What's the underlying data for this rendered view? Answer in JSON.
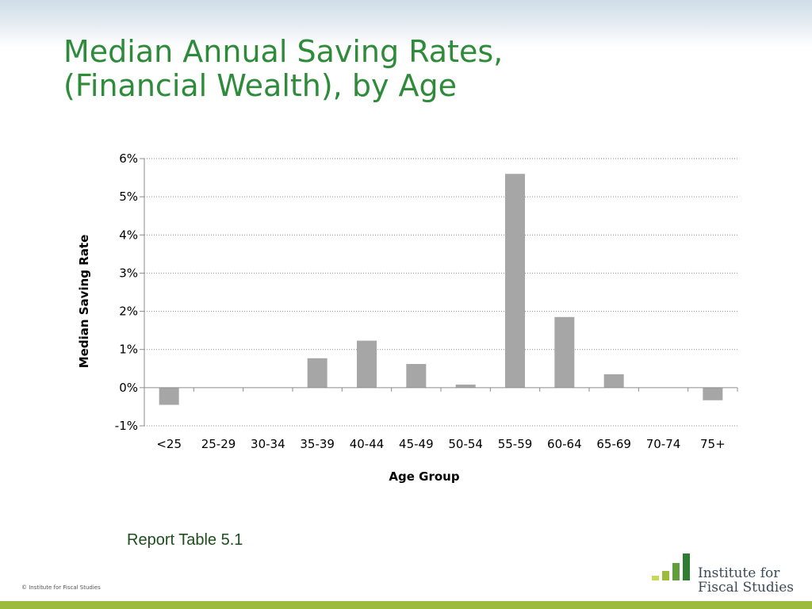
{
  "slide": {
    "title_line1": "Median Annual Saving Rates,",
    "title_line2": "(Financial Wealth), by Age",
    "caption": "Report Table 5.1",
    "copyright": "© Institute for Fiscal Studies",
    "logo_line1": "Institute for",
    "logo_line2": "Fiscal Studies",
    "colors": {
      "title": "#2e8b3a",
      "bar": "#a6a6a6",
      "logo_bars": [
        "#c8d85a",
        "#9dbb3d",
        "#5f9e3a",
        "#2e7d32"
      ],
      "bottom_band": "#9dbb3d"
    }
  },
  "chart_data": {
    "type": "bar",
    "categories": [
      "<25",
      "25-29",
      "30-34",
      "35-39",
      "40-44",
      "45-49",
      "50-54",
      "55-59",
      "60-64",
      "65-69",
      "70-74",
      "75+"
    ],
    "values": [
      -0.45,
      0.0,
      0.0,
      0.77,
      1.23,
      0.62,
      0.08,
      5.6,
      1.85,
      0.35,
      0.0,
      -0.33
    ],
    "xlabel": "Age Group",
    "ylabel": "Median Saving Rate",
    "ylim": [
      -1,
      6
    ],
    "yticks": [
      "-1%",
      "0%",
      "1%",
      "2%",
      "3%",
      "4%",
      "5%",
      "6%"
    ],
    "grid": true,
    "legend": "none"
  }
}
